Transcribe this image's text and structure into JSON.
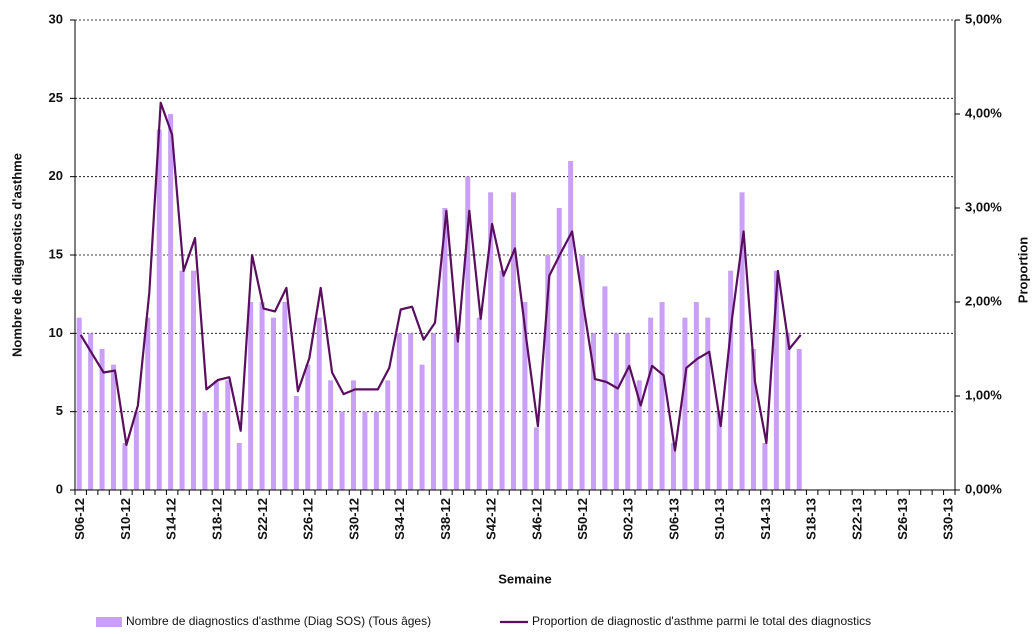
{
  "chart_data": {
    "type": "bar-line",
    "x_label": "Semaine",
    "y_label": "Nombre de diagnostics d'asthme",
    "y2_label": "Proportion",
    "categories": [
      "S06-12",
      null,
      null,
      null,
      "S10-12",
      null,
      null,
      null,
      "S14-12",
      null,
      null,
      null,
      "S18-12",
      null,
      null,
      null,
      "S22-12",
      null,
      null,
      null,
      "S26-12",
      null,
      null,
      null,
      "S30-12",
      null,
      null,
      null,
      "S34-12",
      null,
      null,
      null,
      "S38-12",
      null,
      null,
      null,
      "S42-12",
      null,
      null,
      null,
      "S46-12",
      null,
      null,
      null,
      "S50-12",
      null,
      null,
      null,
      "S02-13",
      null,
      null,
      null,
      "S06-13",
      null,
      null,
      null,
      "S10-13",
      null,
      null,
      null,
      "S14-13",
      null,
      null,
      null,
      "S18-13",
      null,
      null,
      null,
      "S22-13",
      null,
      null,
      null,
      "S26-13",
      null,
      null,
      null,
      "S30-13"
    ],
    "series": [
      {
        "name": "Nombre de diagnostics d'asthme (Diag SOS) (Tous âges)",
        "type": "bar",
        "color": "#c9a0f5",
        "values": [
          11,
          10,
          9,
          8,
          3,
          5,
          11,
          23,
          24,
          14,
          14,
          5,
          7,
          7,
          3,
          12,
          12,
          11,
          12,
          6,
          8,
          11,
          7,
          5,
          7,
          5,
          5,
          7,
          10,
          10,
          8,
          10,
          18,
          10,
          20,
          11,
          19,
          14,
          19,
          12,
          4,
          15,
          18,
          21,
          15,
          10,
          13,
          10,
          10,
          7,
          11,
          12,
          3,
          11,
          12,
          11,
          5,
          14,
          19,
          9,
          3,
          14,
          10,
          9,
          null,
          null,
          null,
          null,
          null,
          null,
          null,
          null,
          null,
          null,
          null,
          null,
          null
        ]
      },
      {
        "name": "Proportion de diagnostic d'asthme parmi le total des diagnostics",
        "type": "line",
        "axis": "y2",
        "color": "#5a0f5e",
        "values": [
          1.65,
          1.45,
          1.25,
          1.27,
          0.48,
          0.9,
          2.1,
          4.12,
          3.78,
          2.33,
          2.68,
          1.07,
          1.17,
          1.2,
          0.63,
          2.5,
          1.93,
          1.9,
          2.15,
          1.05,
          1.4,
          2.15,
          1.25,
          1.02,
          1.07,
          1.07,
          1.07,
          1.3,
          1.92,
          1.95,
          1.6,
          1.78,
          2.97,
          1.58,
          2.97,
          1.82,
          2.83,
          2.28,
          2.57,
          1.6,
          0.68,
          2.28,
          2.52,
          2.75,
          1.95,
          1.18,
          1.15,
          1.08,
          1.32,
          0.9,
          1.32,
          1.22,
          0.42,
          1.3,
          1.4,
          1.47,
          0.68,
          1.83,
          2.75,
          1.15,
          0.5,
          2.33,
          1.5,
          1.65,
          null,
          null,
          null,
          null,
          null,
          null,
          null,
          null,
          null,
          null,
          null,
          null,
          null
        ]
      }
    ],
    "ylim": [
      0,
      30
    ],
    "yticks": [
      0,
      5,
      10,
      15,
      20,
      25,
      30
    ],
    "y2lim": [
      0,
      5
    ],
    "y2ticks": [
      {
        "value": 0,
        "label": "0,00%"
      },
      {
        "value": 1,
        "label": "1,00%"
      },
      {
        "value": 2,
        "label": "2,00%"
      },
      {
        "value": 3,
        "label": "3,00%"
      },
      {
        "value": 4,
        "label": "4,00%"
      },
      {
        "value": 5,
        "label": "5,00%"
      }
    ],
    "grid": true
  }
}
